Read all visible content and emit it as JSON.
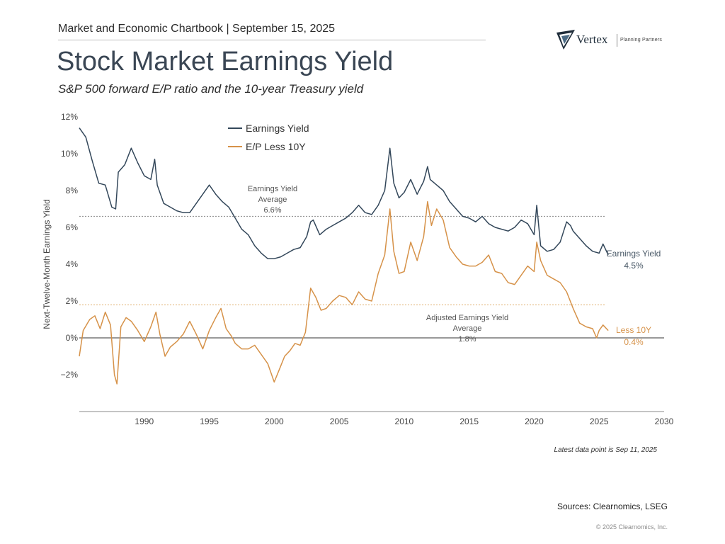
{
  "header": {
    "text": "Market and Economic Chartbook | September 15, 2025",
    "title": "Stock Market Earnings Yield",
    "subtitle": "S&P 500 forward E/P ratio and the 10-year Treasury yield"
  },
  "logo": {
    "name": "Vertex",
    "tagline": "Planning Partners",
    "icon": "vertex-chevron-icon"
  },
  "footer": {
    "note": "Latest data point is Sep 11, 2025",
    "sources": "Sources: Clearnomics, LSEG",
    "copyright": "© 2025 Clearnomics, Inc."
  },
  "colors": {
    "earnings": "#33475a",
    "less10y": "#d69249",
    "grid": "#999999"
  },
  "chart_data": {
    "type": "line",
    "ylabel": "Next-Twelve-Month Earnings Yield",
    "xlim": [
      1985,
      2030
    ],
    "ylim": [
      -4,
      12
    ],
    "x_ticks": [
      1990,
      1995,
      2000,
      2005,
      2010,
      2015,
      2020,
      2025,
      2030
    ],
    "y_ticks": [
      12,
      10,
      8,
      6,
      4,
      2,
      0,
      -2
    ],
    "y_tick_labels": [
      "12%",
      "10%",
      "8%",
      "6%",
      "4%",
      "2%",
      "0%",
      "−2%"
    ],
    "legend": {
      "placement": "top-center",
      "entries": [
        "Earnings Yield",
        "E/P Less 10Y"
      ]
    },
    "reference_lines": [
      {
        "value": 6.6,
        "style": "dotted",
        "label": [
          "Earnings Yield",
          "Average",
          "6.6%"
        ]
      },
      {
        "value": 1.8,
        "style": "dotted",
        "label": [
          "Adjusted Earnings Yield",
          "Average",
          "1.8%"
        ]
      },
      {
        "value": 0,
        "style": "solid"
      }
    ],
    "series": [
      {
        "name": "Earnings Yield",
        "end_label": [
          "Earnings Yield",
          "4.5%"
        ],
        "points": [
          [
            1985.0,
            11.4
          ],
          [
            1985.5,
            10.9
          ],
          [
            1986.0,
            9.6
          ],
          [
            1986.5,
            8.4
          ],
          [
            1987.0,
            8.3
          ],
          [
            1987.5,
            7.1
          ],
          [
            1987.8,
            7.0
          ],
          [
            1988.0,
            9.0
          ],
          [
            1988.5,
            9.4
          ],
          [
            1989.0,
            10.3
          ],
          [
            1989.5,
            9.5
          ],
          [
            1990.0,
            8.8
          ],
          [
            1990.5,
            8.6
          ],
          [
            1990.8,
            9.7
          ],
          [
            1991.0,
            8.3
          ],
          [
            1991.5,
            7.3
          ],
          [
            1992.0,
            7.1
          ],
          [
            1992.5,
            6.9
          ],
          [
            1993.0,
            6.8
          ],
          [
            1993.5,
            6.8
          ],
          [
            1994.0,
            7.3
          ],
          [
            1994.5,
            7.8
          ],
          [
            1995.0,
            8.3
          ],
          [
            1995.5,
            7.8
          ],
          [
            1996.0,
            7.4
          ],
          [
            1996.5,
            7.1
          ],
          [
            1997.0,
            6.5
          ],
          [
            1997.5,
            5.9
          ],
          [
            1998.0,
            5.6
          ],
          [
            1998.5,
            5.0
          ],
          [
            1999.0,
            4.6
          ],
          [
            1999.5,
            4.3
          ],
          [
            2000.0,
            4.3
          ],
          [
            2000.5,
            4.4
          ],
          [
            2001.0,
            4.6
          ],
          [
            2001.5,
            4.8
          ],
          [
            2002.0,
            4.9
          ],
          [
            2002.5,
            5.5
          ],
          [
            2002.8,
            6.3
          ],
          [
            2003.0,
            6.4
          ],
          [
            2003.5,
            5.6
          ],
          [
            2004.0,
            5.9
          ],
          [
            2004.5,
            6.1
          ],
          [
            2005.0,
            6.3
          ],
          [
            2005.5,
            6.5
          ],
          [
            2006.0,
            6.8
          ],
          [
            2006.5,
            7.2
          ],
          [
            2007.0,
            6.8
          ],
          [
            2007.5,
            6.7
          ],
          [
            2008.0,
            7.2
          ],
          [
            2008.5,
            8.0
          ],
          [
            2008.9,
            10.3
          ],
          [
            2009.2,
            8.4
          ],
          [
            2009.6,
            7.6
          ],
          [
            2010.0,
            7.9
          ],
          [
            2010.5,
            8.6
          ],
          [
            2011.0,
            7.8
          ],
          [
            2011.5,
            8.5
          ],
          [
            2011.8,
            9.3
          ],
          [
            2012.0,
            8.6
          ],
          [
            2012.5,
            8.3
          ],
          [
            2013.0,
            8.0
          ],
          [
            2013.5,
            7.4
          ],
          [
            2014.0,
            7.0
          ],
          [
            2014.5,
            6.6
          ],
          [
            2015.0,
            6.5
          ],
          [
            2015.5,
            6.3
          ],
          [
            2016.0,
            6.6
          ],
          [
            2016.5,
            6.2
          ],
          [
            2017.0,
            6.0
          ],
          [
            2017.5,
            5.9
          ],
          [
            2018.0,
            5.8
          ],
          [
            2018.5,
            6.0
          ],
          [
            2019.0,
            6.4
          ],
          [
            2019.5,
            6.2
          ],
          [
            2020.0,
            5.6
          ],
          [
            2020.2,
            7.2
          ],
          [
            2020.5,
            5.0
          ],
          [
            2021.0,
            4.7
          ],
          [
            2021.5,
            4.8
          ],
          [
            2022.0,
            5.2
          ],
          [
            2022.5,
            6.3
          ],
          [
            2022.8,
            6.1
          ],
          [
            2023.0,
            5.8
          ],
          [
            2023.5,
            5.4
          ],
          [
            2024.0,
            5.0
          ],
          [
            2024.5,
            4.7
          ],
          [
            2025.0,
            4.6
          ],
          [
            2025.3,
            5.1
          ],
          [
            2025.7,
            4.5
          ]
        ]
      },
      {
        "name": "E/P Less 10Y",
        "end_label": [
          "Less 10Y",
          "0.4%"
        ],
        "points": [
          [
            1985.0,
            -1.0
          ],
          [
            1985.3,
            0.4
          ],
          [
            1985.8,
            1.0
          ],
          [
            1986.2,
            1.2
          ],
          [
            1986.6,
            0.5
          ],
          [
            1987.0,
            1.4
          ],
          [
            1987.4,
            0.7
          ],
          [
            1987.7,
            -2.0
          ],
          [
            1987.9,
            -2.5
          ],
          [
            1988.2,
            0.6
          ],
          [
            1988.6,
            1.1
          ],
          [
            1989.0,
            0.9
          ],
          [
            1989.5,
            0.4
          ],
          [
            1990.0,
            -0.2
          ],
          [
            1990.5,
            0.6
          ],
          [
            1990.9,
            1.4
          ],
          [
            1991.2,
            0.2
          ],
          [
            1991.6,
            -1.0
          ],
          [
            1992.0,
            -0.5
          ],
          [
            1992.5,
            -0.2
          ],
          [
            1993.0,
            0.2
          ],
          [
            1993.5,
            0.9
          ],
          [
            1994.0,
            0.2
          ],
          [
            1994.5,
            -0.6
          ],
          [
            1995.0,
            0.4
          ],
          [
            1995.5,
            1.1
          ],
          [
            1995.9,
            1.6
          ],
          [
            1996.3,
            0.5
          ],
          [
            1996.7,
            0.1
          ],
          [
            1997.0,
            -0.3
          ],
          [
            1997.5,
            -0.6
          ],
          [
            1998.0,
            -0.6
          ],
          [
            1998.5,
            -0.4
          ],
          [
            1999.0,
            -0.9
          ],
          [
            1999.5,
            -1.4
          ],
          [
            2000.0,
            -2.4
          ],
          [
            2000.4,
            -1.7
          ],
          [
            2000.8,
            -1.0
          ],
          [
            2001.2,
            -0.7
          ],
          [
            2001.6,
            -0.3
          ],
          [
            2002.0,
            -0.4
          ],
          [
            2002.4,
            0.3
          ],
          [
            2002.8,
            2.7
          ],
          [
            2003.2,
            2.2
          ],
          [
            2003.6,
            1.5
          ],
          [
            2004.0,
            1.6
          ],
          [
            2004.5,
            2.0
          ],
          [
            2005.0,
            2.3
          ],
          [
            2005.5,
            2.2
          ],
          [
            2006.0,
            1.8
          ],
          [
            2006.5,
            2.5
          ],
          [
            2007.0,
            2.1
          ],
          [
            2007.5,
            2.0
          ],
          [
            2008.0,
            3.5
          ],
          [
            2008.5,
            4.5
          ],
          [
            2008.9,
            7.0
          ],
          [
            2009.2,
            4.7
          ],
          [
            2009.6,
            3.5
          ],
          [
            2010.0,
            3.6
          ],
          [
            2010.5,
            5.2
          ],
          [
            2011.0,
            4.2
          ],
          [
            2011.5,
            5.5
          ],
          [
            2011.8,
            7.4
          ],
          [
            2012.1,
            6.1
          ],
          [
            2012.5,
            7.0
          ],
          [
            2013.0,
            6.4
          ],
          [
            2013.5,
            4.9
          ],
          [
            2014.0,
            4.4
          ],
          [
            2014.5,
            4.0
          ],
          [
            2015.0,
            3.9
          ],
          [
            2015.5,
            3.9
          ],
          [
            2016.0,
            4.1
          ],
          [
            2016.5,
            4.5
          ],
          [
            2017.0,
            3.6
          ],
          [
            2017.5,
            3.5
          ],
          [
            2018.0,
            3.0
          ],
          [
            2018.5,
            2.9
          ],
          [
            2019.0,
            3.4
          ],
          [
            2019.5,
            3.9
          ],
          [
            2020.0,
            3.6
          ],
          [
            2020.2,
            5.2
          ],
          [
            2020.5,
            4.2
          ],
          [
            2021.0,
            3.4
          ],
          [
            2021.5,
            3.2
          ],
          [
            2022.0,
            3.0
          ],
          [
            2022.5,
            2.5
          ],
          [
            2023.0,
            1.6
          ],
          [
            2023.5,
            0.8
          ],
          [
            2024.0,
            0.6
          ],
          [
            2024.5,
            0.5
          ],
          [
            2024.8,
            0.0
          ],
          [
            2025.0,
            0.4
          ],
          [
            2025.3,
            0.7
          ],
          [
            2025.7,
            0.4
          ]
        ]
      }
    ]
  }
}
